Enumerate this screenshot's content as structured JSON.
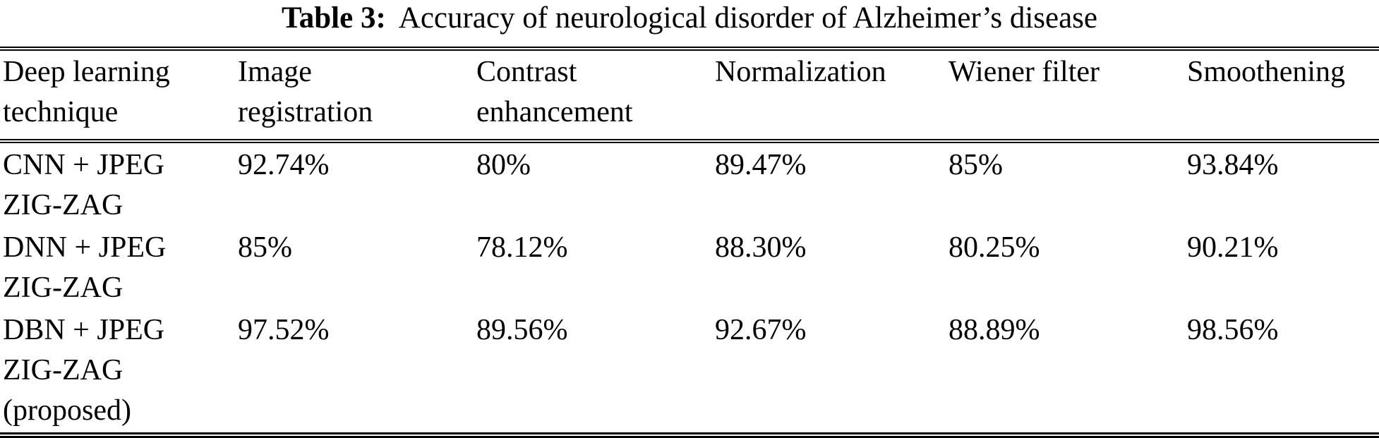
{
  "caption": {
    "label": "Table 3:",
    "text": "Accuracy of neurological disorder of Alzheimer’s disease"
  },
  "table": {
    "columns": [
      "Deep learning\ntechnique",
      "Image\nregistration",
      "Contrast\nenhancement",
      "Normalization",
      "Wiener filter",
      "Smoothening"
    ],
    "rows": [
      {
        "cells": [
          "CNN + JPEG\nZIG-ZAG",
          "92.74%",
          "80%",
          "89.47%",
          "85%",
          "93.84%"
        ]
      },
      {
        "cells": [
          "DNN + JPEG\nZIG-ZAG",
          "85%",
          "78.12%",
          "88.30%",
          "80.25%",
          "90.21%"
        ]
      },
      {
        "cells": [
          "DBN + JPEG\nZIG-ZAG\n(proposed)",
          "97.52%",
          "89.56%",
          "92.67%",
          "88.89%",
          "98.56%"
        ]
      }
    ]
  }
}
